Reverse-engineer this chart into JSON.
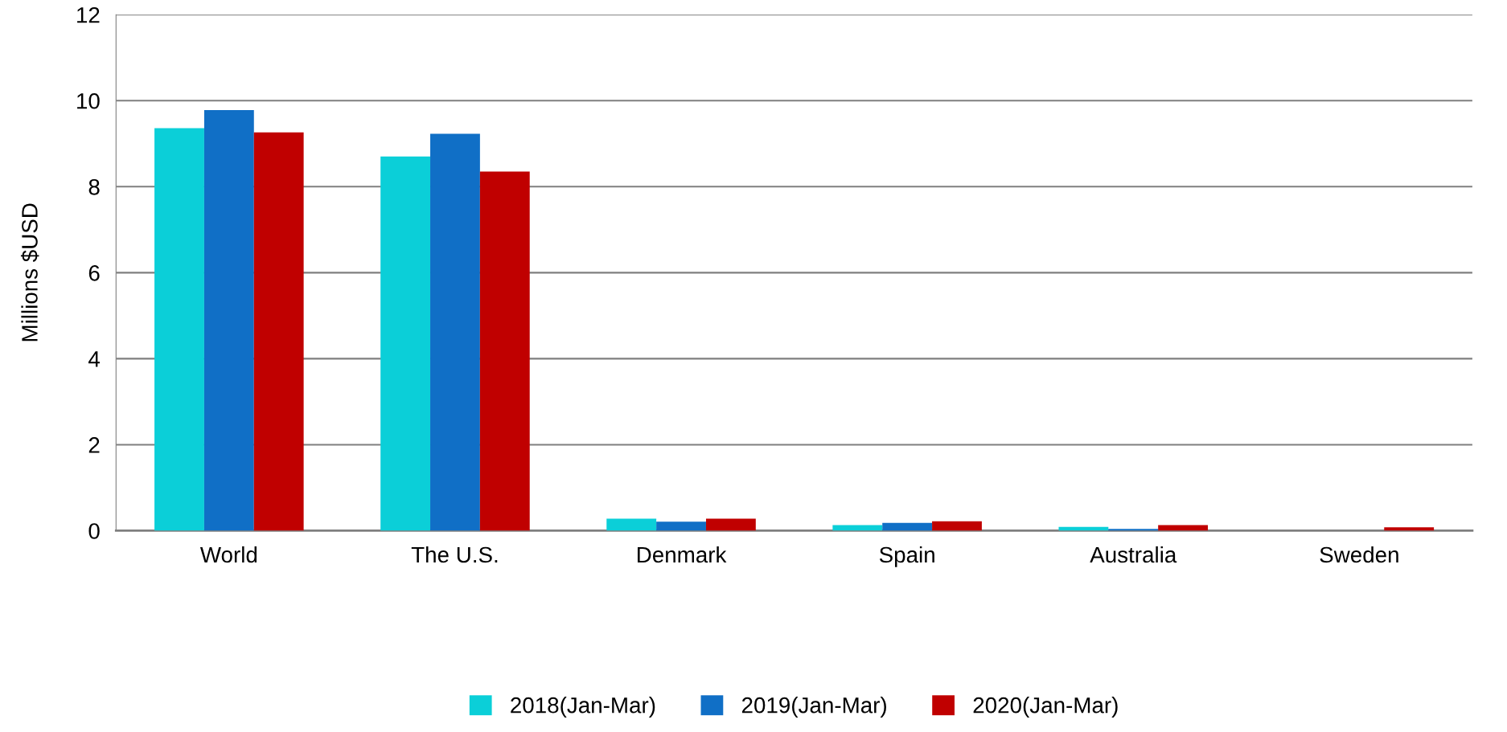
{
  "chart_data": {
    "type": "bar",
    "ylabel": "Millions $USD",
    "categories": [
      "World",
      "The U.S.",
      "Denmark",
      "Spain",
      "Australia",
      "Sweden"
    ],
    "series": [
      {
        "name": "2018(Jan-Mar)",
        "color": "#0bcfd8",
        "values": [
          9.36,
          8.7,
          0.28,
          0.13,
          0.09,
          0
        ]
      },
      {
        "name": "2019(Jan-Mar)",
        "color": "#106fc6",
        "values": [
          9.78,
          9.23,
          0.21,
          0.18,
          0.04,
          null
        ]
      },
      {
        "name": "2020(Jan-Mar)",
        "color": "#c00000",
        "values": [
          9.26,
          8.35,
          0.28,
          0.22,
          0.13,
          0.08
        ]
      }
    ],
    "ylim": [
      0,
      12
    ],
    "yticks": [
      0,
      2,
      4,
      6,
      8,
      10,
      12
    ],
    "grid": "y",
    "legend": "bottom"
  }
}
